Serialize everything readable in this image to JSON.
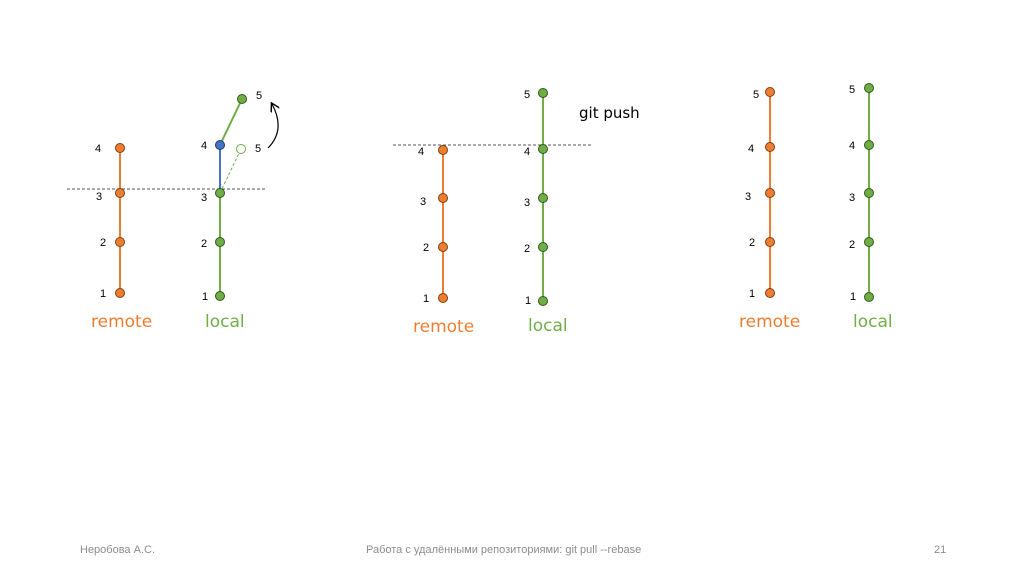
{
  "colors": {
    "remote": "#ed7d31",
    "local": "#70ad47",
    "rebased": "#4472c4"
  },
  "diagrams": [
    {
      "remote_label": "remote",
      "local_label": "local",
      "remote_commits": [
        "1",
        "2",
        "3",
        "4"
      ],
      "local_commits": [
        "1",
        "2",
        "3",
        "4",
        "5"
      ],
      "moved_commit_label": "5"
    },
    {
      "remote_label": "remote",
      "local_label": "local",
      "remote_commits": [
        "1",
        "2",
        "3",
        "4"
      ],
      "local_commits": [
        "1",
        "2",
        "3",
        "4",
        "5"
      ],
      "command": "git push"
    },
    {
      "remote_label": "remote",
      "local_label": "local",
      "remote_commits": [
        "1",
        "2",
        "3",
        "4",
        "5"
      ],
      "local_commits": [
        "1",
        "2",
        "3",
        "4",
        "5"
      ]
    }
  ],
  "footer": {
    "author": "Неробова А.С.",
    "title": "Работа с удалёнными репозиториями: git pull --rebase",
    "page": "21"
  }
}
